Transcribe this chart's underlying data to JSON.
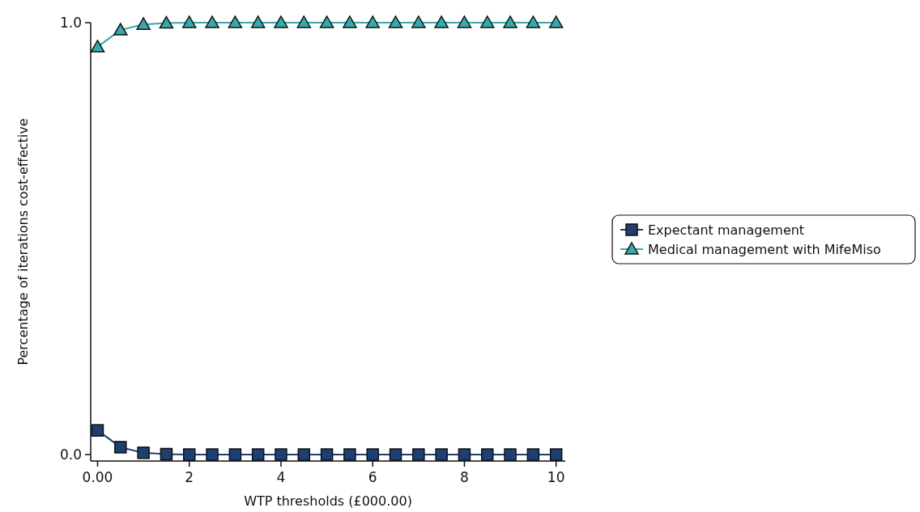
{
  "chart_data": {
    "type": "line",
    "xlabel": "WTP thresholds (£000.00)",
    "ylabel": "Percentage of iterations cost-effective",
    "x": [
      0,
      0.5,
      1,
      1.5,
      2,
      2.5,
      3,
      3.5,
      4,
      4.5,
      5,
      5.5,
      6,
      6.5,
      7,
      7.5,
      8,
      8.5,
      9,
      9.5,
      10
    ],
    "series": [
      {
        "name": "Expectant management",
        "color": "#1f3f73",
        "marker": "square",
        "values": [
          0.056,
          0.017,
          0.004,
          0.001,
          0,
          0,
          0,
          0,
          0,
          0,
          0,
          0,
          0,
          0,
          0,
          0,
          0,
          0,
          0,
          0,
          0
        ]
      },
      {
        "name": "Medical management with MifeMiso",
        "color": "#36a9ad",
        "marker": "triangle",
        "values": [
          0.944,
          0.983,
          0.996,
          0.999,
          1,
          1,
          1,
          1,
          1,
          1,
          1,
          1,
          1,
          1,
          1,
          1,
          1,
          1,
          1,
          1,
          1
        ]
      }
    ],
    "xlim": [
      -0.15,
      10.2
    ],
    "ylim": [
      -0.015,
      1.0
    ],
    "xticks": [
      {
        "value": 0,
        "label": "0.00"
      },
      2,
      4,
      6,
      8,
      10
    ],
    "yticks": [
      {
        "value": 0,
        "label": "0.0"
      },
      {
        "value": 1,
        "label": "1.0"
      }
    ],
    "legend": "right",
    "grid": false,
    "line_style": "solid"
  }
}
